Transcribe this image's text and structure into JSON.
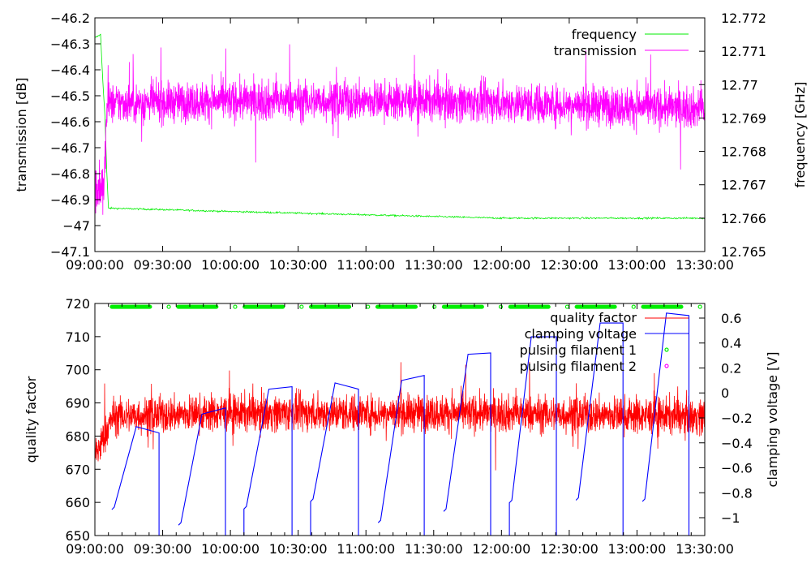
{
  "chart_data": [
    {
      "type": "line",
      "panel": "top",
      "xlabel": "",
      "ylabel": "transmission [dB]",
      "y2label": "frequency [GHz]",
      "x_ticks": [
        "09:00:00",
        "09:30:00",
        "10:00:00",
        "10:30:00",
        "11:00:00",
        "11:30:00",
        "12:00:00",
        "12:30:00",
        "13:00:00",
        "13:30:00"
      ],
      "x_range_minutes_from_0900": [
        0,
        270
      ],
      "ylim": [
        -47.1,
        -46.2
      ],
      "y_ticks": [
        "-46.2",
        "-46.3",
        "-46.4",
        "-46.5",
        "-46.6",
        "-46.7",
        "-46.8",
        "-46.9",
        "-47",
        "-47.1"
      ],
      "y2lim": [
        12.765,
        12.772
      ],
      "y2_ticks": [
        "12.772",
        "12.771",
        "12.77",
        "12.769",
        "12.768",
        "12.767",
        "12.766",
        "12.765"
      ],
      "legend_position": "top-right",
      "series": [
        {
          "name": "frequency",
          "axis": "y2",
          "color": "#00ee00",
          "points": [
            [
              0,
              12.7714
            ],
            [
              2.5,
              12.7715
            ],
            [
              3.2,
              12.7705
            ],
            [
              4.5,
              12.769
            ],
            [
              5.2,
              12.7675
            ],
            [
              6,
              12.7663
            ],
            [
              60,
              12.7662
            ],
            [
              120,
              12.7661
            ],
            [
              180,
              12.766
            ],
            [
              270,
              12.766
            ]
          ],
          "noise_amplitude": 3e-05
        },
        {
          "name": "transmission",
          "axis": "y",
          "color": "#ff00ff",
          "points": [
            [
              0,
              -46.86
            ],
            [
              4,
              -46.86
            ],
            [
              5.5,
              -46.53
            ],
            [
              60,
              -46.52
            ],
            [
              150,
              -46.52
            ],
            [
              270,
              -46.55
            ]
          ],
          "noise_amplitude": 0.09,
          "early_noise_amplitude": 0.12
        }
      ]
    },
    {
      "type": "line",
      "panel": "bottom",
      "xlabel": "",
      "ylabel": "quality factor",
      "y2label": "clamping voltage [V]",
      "x_ticks": [
        "09:00:00",
        "09:30:00",
        "10:00:00",
        "10:30:00",
        "11:00:00",
        "11:30:00",
        "12:00:00",
        "12:30:00",
        "13:00:00",
        "13:30:00"
      ],
      "x_range_minutes_from_0900": [
        0,
        270
      ],
      "ylim": [
        650,
        720
      ],
      "y_ticks": [
        "720",
        "710",
        "700",
        "690",
        "680",
        "670",
        "660",
        "650"
      ],
      "y2lim": [
        -1.143,
        0.717
      ],
      "y2_ticks": [
        "0.6",
        "0.4",
        "0.2",
        "0",
        "-0.2",
        "-0.4",
        "-0.6",
        "-0.8",
        "-1"
      ],
      "legend_position": "top-right",
      "series": [
        {
          "name": "quality factor",
          "axis": "y",
          "color": "#ff0000",
          "points": [
            [
              0,
              674
            ],
            [
              3,
              678
            ],
            [
              8,
              686
            ],
            [
              60,
              687
            ],
            [
              150,
              687
            ],
            [
              270,
              686
            ]
          ],
          "noise_amplitude": 6.5
        },
        {
          "name": "clamping voltage",
          "axis": "y2",
          "color": "#0000ff",
          "cycles": [
            {
              "start": [
                7.5,
                -0.935
              ],
              "peak": [
                18.3,
                -0.27
              ],
              "end": [
                28.4,
                -0.32
              ],
              "jump_in": false
            },
            {
              "start": [
                37,
                -1.06
              ],
              "peak": [
                47.4,
                -0.17
              ],
              "end": [
                57.8,
                -0.12
              ],
              "jump_in": false
            },
            {
              "start": [
                66,
                -0.93
              ],
              "peak": [
                77,
                0.03
              ],
              "end": [
                87.3,
                0.05
              ],
              "jump_in": true
            },
            {
              "start": [
                95.5,
                -0.87
              ],
              "peak": [
                106.3,
                0.08
              ],
              "end": [
                116.7,
                0.03
              ],
              "jump_in": true
            },
            {
              "start": [
                125.4,
                -1.04
              ],
              "peak": [
                135.8,
                0.1
              ],
              "end": [
                145.8,
                0.14
              ],
              "jump_in": false
            },
            {
              "start": [
                154.4,
                -0.95
              ],
              "peak": [
                165.2,
                0.31
              ],
              "end": [
                175.2,
                0.32
              ],
              "jump_in": false
            },
            {
              "start": [
                183.5,
                -0.88
              ],
              "peak": [
                193.2,
                0.45
              ],
              "end": [
                204.3,
                0.45
              ],
              "jump_in": true
            },
            {
              "start": [
                213,
                -0.86
              ],
              "peak": [
                223.7,
                0.56
              ],
              "end": [
                233.8,
                0.56
              ],
              "jump_in": false
            },
            {
              "start": [
                242.4,
                -0.87
              ],
              "peak": [
                253,
                0.64
              ],
              "end": [
                263,
                0.62
              ],
              "jump_in": false
            }
          ]
        },
        {
          "name": "pulsing filament 1",
          "axis": "y",
          "color": "#00ee00",
          "y_value": 719,
          "bars": [
            [
              7.5,
              24.4
            ],
            [
              36.9,
              53.8
            ],
            [
              66.3,
              83.2
            ],
            [
              95.7,
              112.6
            ],
            [
              125.1,
              142
            ],
            [
              154.5,
              171.4
            ],
            [
              183.9,
              200.8
            ],
            [
              213.3,
              230.2
            ],
            [
              242.7,
              259.6
            ]
          ],
          "single_points": [
            32.7,
            62.1,
            91.5,
            120.9,
            150.3,
            179.7,
            209.1,
            238.5,
            267.9
          ]
        },
        {
          "name": "pulsing filament 2",
          "axis": "y",
          "color": "#ff00ff",
          "points": []
        }
      ]
    }
  ]
}
